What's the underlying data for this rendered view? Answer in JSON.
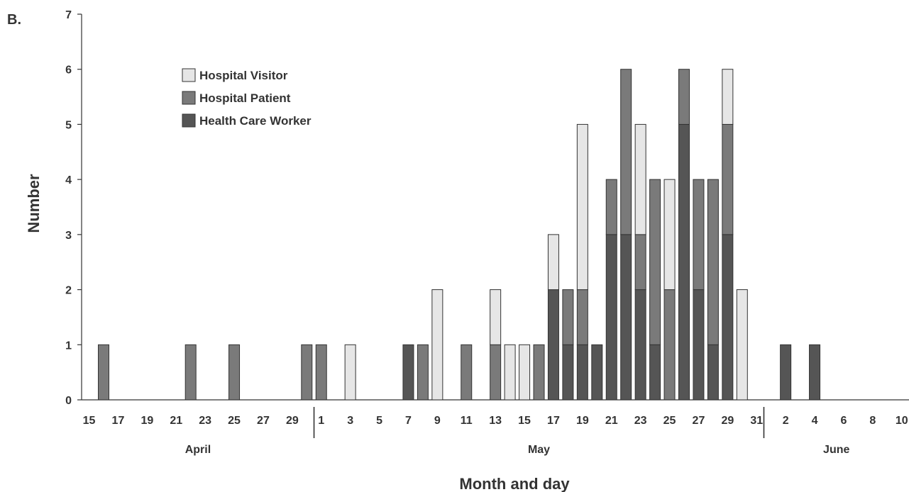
{
  "panel_label": "B.",
  "chart_data": {
    "type": "bar",
    "stacked": true,
    "xlabel": "Month and day",
    "ylabel": "Number",
    "ylim": [
      0,
      7
    ],
    "yticks": [
      0,
      1,
      2,
      3,
      4,
      5,
      6,
      7
    ],
    "legend_position": "top-left",
    "months": [
      {
        "name": "April",
        "start": "2003-04-15",
        "end": "2003-04-30"
      },
      {
        "name": "May",
        "start": "2003-05-01",
        "end": "2003-05-31"
      },
      {
        "name": "June",
        "start": "2003-06-01",
        "end": "2003-06-10"
      }
    ],
    "tick_labels": [
      {
        "date": "2003-04-15",
        "label": "15"
      },
      {
        "date": "2003-04-17",
        "label": "17"
      },
      {
        "date": "2003-04-19",
        "label": "19"
      },
      {
        "date": "2003-04-21",
        "label": "21"
      },
      {
        "date": "2003-04-23",
        "label": "23"
      },
      {
        "date": "2003-04-25",
        "label": "25"
      },
      {
        "date": "2003-04-27",
        "label": "27"
      },
      {
        "date": "2003-04-29",
        "label": "29"
      },
      {
        "date": "2003-05-01",
        "label": "1"
      },
      {
        "date": "2003-05-03",
        "label": "3"
      },
      {
        "date": "2003-05-05",
        "label": "5"
      },
      {
        "date": "2003-05-07",
        "label": "7"
      },
      {
        "date": "2003-05-09",
        "label": "9"
      },
      {
        "date": "2003-05-11",
        "label": "11"
      },
      {
        "date": "2003-05-13",
        "label": "13"
      },
      {
        "date": "2003-05-15",
        "label": "15"
      },
      {
        "date": "2003-05-17",
        "label": "17"
      },
      {
        "date": "2003-05-19",
        "label": "19"
      },
      {
        "date": "2003-05-21",
        "label": "21"
      },
      {
        "date": "2003-05-23",
        "label": "23"
      },
      {
        "date": "2003-05-25",
        "label": "25"
      },
      {
        "date": "2003-05-27",
        "label": "27"
      },
      {
        "date": "2003-05-29",
        "label": "29"
      },
      {
        "date": "2003-05-31",
        "label": "31"
      },
      {
        "date": "2003-06-02",
        "label": "2"
      },
      {
        "date": "2003-06-04",
        "label": "4"
      },
      {
        "date": "2003-06-06",
        "label": "6"
      },
      {
        "date": "2003-06-08",
        "label": "8"
      },
      {
        "date": "2003-06-10",
        "label": "10"
      }
    ],
    "series": [
      {
        "name": "Health Care Worker",
        "color": "#555555"
      },
      {
        "name": "Hospital Patient",
        "color": "#7a7a7a"
      },
      {
        "name": "Hospital Visitor",
        "color": "#e6e6e6"
      }
    ],
    "legend_order": [
      "Hospital Visitor",
      "Hospital Patient",
      "Health Care Worker"
    ],
    "data": [
      {
        "date": "2003-04-16",
        "Health Care Worker": 0,
        "Hospital Patient": 1,
        "Hospital Visitor": 0
      },
      {
        "date": "2003-04-22",
        "Health Care Worker": 0,
        "Hospital Patient": 1,
        "Hospital Visitor": 0
      },
      {
        "date": "2003-04-25",
        "Health Care Worker": 0,
        "Hospital Patient": 1,
        "Hospital Visitor": 0
      },
      {
        "date": "2003-04-30",
        "Health Care Worker": 0,
        "Hospital Patient": 1,
        "Hospital Visitor": 0
      },
      {
        "date": "2003-05-01",
        "Health Care Worker": 0,
        "Hospital Patient": 1,
        "Hospital Visitor": 0
      },
      {
        "date": "2003-05-03",
        "Health Care Worker": 0,
        "Hospital Patient": 0,
        "Hospital Visitor": 1
      },
      {
        "date": "2003-05-07",
        "Health Care Worker": 1,
        "Hospital Patient": 0,
        "Hospital Visitor": 0
      },
      {
        "date": "2003-05-08",
        "Health Care Worker": 0,
        "Hospital Patient": 1,
        "Hospital Visitor": 0
      },
      {
        "date": "2003-05-09",
        "Health Care Worker": 0,
        "Hospital Patient": 0,
        "Hospital Visitor": 2
      },
      {
        "date": "2003-05-11",
        "Health Care Worker": 0,
        "Hospital Patient": 1,
        "Hospital Visitor": 0
      },
      {
        "date": "2003-05-13",
        "Health Care Worker": 0,
        "Hospital Patient": 1,
        "Hospital Visitor": 1
      },
      {
        "date": "2003-05-14",
        "Health Care Worker": 0,
        "Hospital Patient": 0,
        "Hospital Visitor": 1
      },
      {
        "date": "2003-05-15",
        "Health Care Worker": 0,
        "Hospital Patient": 0,
        "Hospital Visitor": 1
      },
      {
        "date": "2003-05-16",
        "Health Care Worker": 0,
        "Hospital Patient": 1,
        "Hospital Visitor": 0
      },
      {
        "date": "2003-05-17",
        "Health Care Worker": 2,
        "Hospital Patient": 0,
        "Hospital Visitor": 1
      },
      {
        "date": "2003-05-18",
        "Health Care Worker": 1,
        "Hospital Patient": 1,
        "Hospital Visitor": 0
      },
      {
        "date": "2003-05-19",
        "Health Care Worker": 1,
        "Hospital Patient": 1,
        "Hospital Visitor": 3
      },
      {
        "date": "2003-05-20",
        "Health Care Worker": 1,
        "Hospital Patient": 0,
        "Hospital Visitor": 0
      },
      {
        "date": "2003-05-21",
        "Health Care Worker": 3,
        "Hospital Patient": 1,
        "Hospital Visitor": 0
      },
      {
        "date": "2003-05-22",
        "Health Care Worker": 3,
        "Hospital Patient": 3,
        "Hospital Visitor": 0
      },
      {
        "date": "2003-05-23",
        "Health Care Worker": 2,
        "Hospital Patient": 1,
        "Hospital Visitor": 2
      },
      {
        "date": "2003-05-24",
        "Health Care Worker": 1,
        "Hospital Patient": 3,
        "Hospital Visitor": 0
      },
      {
        "date": "2003-05-25",
        "Health Care Worker": 0,
        "Hospital Patient": 2,
        "Hospital Visitor": 2
      },
      {
        "date": "2003-05-26",
        "Health Care Worker": 5,
        "Hospital Patient": 1,
        "Hospital Visitor": 0
      },
      {
        "date": "2003-05-27",
        "Health Care Worker": 2,
        "Hospital Patient": 2,
        "Hospital Visitor": 0
      },
      {
        "date": "2003-05-28",
        "Health Care Worker": 1,
        "Hospital Patient": 3,
        "Hospital Visitor": 0
      },
      {
        "date": "2003-05-29",
        "Health Care Worker": 3,
        "Hospital Patient": 2,
        "Hospital Visitor": 1
      },
      {
        "date": "2003-05-30",
        "Health Care Worker": 0,
        "Hospital Patient": 0,
        "Hospital Visitor": 2
      },
      {
        "date": "2003-06-02",
        "Health Care Worker": 1,
        "Hospital Patient": 0,
        "Hospital Visitor": 0
      },
      {
        "date": "2003-06-04",
        "Health Care Worker": 1,
        "Hospital Patient": 0,
        "Hospital Visitor": 0
      }
    ]
  }
}
